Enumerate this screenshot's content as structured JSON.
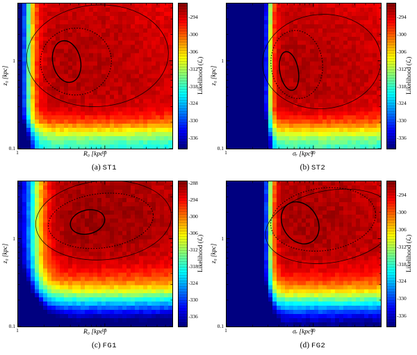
{
  "figure": {
    "background": "#ffffff",
    "colormap": "jet",
    "colormap_colors": [
      "#00008f",
      "#0000ff",
      "#00ffff",
      "#00ff00",
      "#ffff00",
      "#ff0000",
      "#800000"
    ],
    "contour_color": "#000000"
  },
  "chart_data": [
    {
      "type": "heatmap",
      "panel": "a",
      "caption_prefix": "(a)",
      "title": "ST1",
      "xlabel": "R₀ [kpc]",
      "ylabel": "z₀ [kpc]",
      "x_range": [
        1,
        60
      ],
      "y_range": [
        0.1,
        4.5
      ],
      "log_axes": true,
      "x_tick_labels": [
        "1",
        "10"
      ],
      "y_tick_labels": [
        "0.1",
        "1"
      ],
      "grid": [
        37,
        35
      ],
      "colorbar": {
        "label": "Likelihood (ℒ)",
        "vmax": -289,
        "vmin": -339.5,
        "ticks": [
          -294,
          -300,
          -306,
          -312,
          -318,
          -324,
          -330,
          -336
        ],
        "steps": 52
      },
      "likelihood_model": {
        "peak": -291.5,
        "peak_u": 0.33,
        "peak_v": 0.55,
        "curv_u": 4,
        "curv_v": 6,
        "left_wall": {
          "depth": 60,
          "pos": 0.055,
          "width": 0.03
        },
        "bottom_wall": {
          "depth": 27,
          "pos": 0.13,
          "width": 0.05
        },
        "noise": 1.3,
        "seed": 11
      },
      "contours": [
        {
          "style": "solid-bold",
          "cx": 0.315,
          "cy": 0.4,
          "rx": 0.09,
          "ry": 0.145,
          "rot": -12
        },
        {
          "style": "dotted",
          "cx": 0.375,
          "cy": 0.4,
          "rx": 0.23,
          "ry": 0.23,
          "rot": -6
        },
        {
          "style": "solid-thin",
          "cx": 0.515,
          "cy": 0.36,
          "rx": 0.46,
          "ry": 0.35,
          "rot": -4
        }
      ]
    },
    {
      "type": "heatmap",
      "panel": "b",
      "caption_prefix": "(b)",
      "title": "ST2",
      "xlabel": "σᵣ [kpc]",
      "ylabel": "z₀ [kpc]",
      "x_range": [
        1,
        60
      ],
      "y_range": [
        0.1,
        4.5
      ],
      "log_axes": true,
      "x_tick_labels": [
        "1",
        "10"
      ],
      "y_tick_labels": [
        "0.1",
        "1"
      ],
      "grid": [
        37,
        35
      ],
      "colorbar": {
        "label": "Likelihood (ℒ)",
        "vmax": -289,
        "vmin": -339.5,
        "ticks": [
          -294,
          -300,
          -306,
          -312,
          -318,
          -324,
          -330,
          -336
        ],
        "steps": 52
      },
      "likelihood_model": {
        "peak": -291.5,
        "peak_u": 0.42,
        "peak_v": 0.52,
        "curv_u": 4,
        "curv_v": 6,
        "left_wall": {
          "depth": 60,
          "pos": 0.27,
          "width": 0.018
        },
        "bottom_wall": {
          "depth": 26,
          "pos": 0.13,
          "width": 0.05
        },
        "noise": 1.3,
        "seed": 22
      },
      "contours": [
        {
          "style": "solid-bold",
          "cx": 0.405,
          "cy": 0.465,
          "rx": 0.06,
          "ry": 0.135,
          "rot": -10
        },
        {
          "style": "dotted",
          "cx": 0.455,
          "cy": 0.42,
          "rx": 0.167,
          "ry": 0.235,
          "rot": -6
        },
        {
          "style": "solid-thin",
          "cx": 0.617,
          "cy": 0.4,
          "rx": 0.385,
          "ry": 0.325,
          "rot": -4
        }
      ]
    },
    {
      "type": "heatmap",
      "panel": "c",
      "caption_prefix": "(c)",
      "title": "FG1",
      "xlabel": "R₀ [kpc]",
      "ylabel": "z₀ [kpc]",
      "x_range": [
        1,
        60
      ],
      "y_range": [
        0.1,
        4.5
      ],
      "log_axes": true,
      "x_tick_labels": [
        "1",
        "10"
      ],
      "y_tick_labels": [
        "0.1",
        "1"
      ],
      "grid": [
        37,
        35
      ],
      "colorbar": {
        "label": "Likelihood (ℒ)",
        "vmax": -287,
        "vmin": -339.5,
        "ticks": [
          -288,
          -294,
          -300,
          -306,
          -312,
          -318,
          -324,
          -330,
          -336
        ],
        "steps": 52
      },
      "likelihood_model": {
        "peak": -288.5,
        "peak_u": 0.45,
        "peak_v": 0.72,
        "curv_u": 4,
        "curv_v": 10,
        "left_wall": {
          "depth": 55,
          "pos": 0.1,
          "width": 0.045
        },
        "bottom_wall": {
          "depth": 55,
          "pos": 0.18,
          "width": 0.082
        },
        "noise": 1.3,
        "seed": 33
      },
      "contours": [
        {
          "style": "solid-bold",
          "cx": 0.45,
          "cy": 0.28,
          "rx": 0.113,
          "ry": 0.082,
          "rot": -14
        },
        {
          "style": "dotted",
          "cx": 0.536,
          "cy": 0.272,
          "rx": 0.342,
          "ry": 0.187,
          "rot": -7
        },
        {
          "style": "solid-thin",
          "cx": 0.554,
          "cy": 0.268,
          "rx": 0.441,
          "ry": 0.272,
          "rot": -5
        }
      ]
    },
    {
      "type": "heatmap",
      "panel": "d",
      "caption_prefix": "(d)",
      "title": "FG2",
      "xlabel": "σᵣ [kpc]",
      "ylabel": "z₀ [kpc]",
      "x_range": [
        1,
        60
      ],
      "y_range": [
        0.1,
        4.5
      ],
      "log_axes": true,
      "x_tick_labels": [
        "1",
        "10"
      ],
      "y_tick_labels": [
        "0.1",
        "1"
      ],
      "grid": [
        37,
        35
      ],
      "colorbar": {
        "label": "Likelihood (ℒ)",
        "vmax": -289,
        "vmin": -339.5,
        "ticks": [
          -294,
          -300,
          -306,
          -312,
          -318,
          -324,
          -330,
          -336
        ],
        "steps": 52
      },
      "likelihood_model": {
        "peak": -291,
        "peak_u": 0.45,
        "peak_v": 0.7,
        "curv_u": 4,
        "curv_v": 7,
        "left_wall": {
          "depth": 60,
          "pos": 0.27,
          "width": 0.022
        },
        "bottom_wall": {
          "depth": 50,
          "pos": 0.17,
          "width": 0.075
        },
        "noise": 1.3,
        "seed": 44
      },
      "contours": [
        {
          "style": "solid-bold",
          "cx": 0.477,
          "cy": 0.286,
          "rx": 0.113,
          "ry": 0.153,
          "rot": -32
        },
        {
          "style": "dotted",
          "cx": 0.626,
          "cy": 0.262,
          "rx": 0.342,
          "ry": 0.215,
          "rot": -8
        },
        {
          "style": "solid-thin",
          "cx": 0.676,
          "cy": 0.31,
          "rx": 0.428,
          "ry": 0.248,
          "rot": -10
        }
      ]
    }
  ]
}
